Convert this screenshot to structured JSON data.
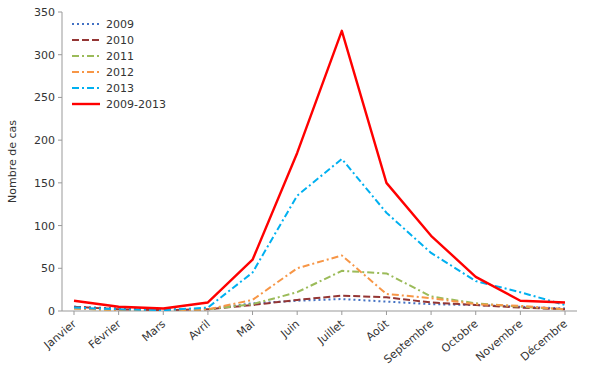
{
  "chart_data": {
    "type": "line",
    "categories": [
      "Janvier",
      "Février",
      "Mars",
      "Avril",
      "Mai",
      "Juin",
      "Juillet",
      "Août",
      "Septembre",
      "Octobre",
      "Novembre",
      "Décembre"
    ],
    "series": [
      {
        "name": "2009",
        "color": "#4472C4",
        "line_style": "dotted",
        "values": [
          5,
          3,
          2,
          2,
          9,
          12,
          14,
          11,
          8,
          7,
          5,
          3
        ]
      },
      {
        "name": "2010",
        "color": "#943634",
        "line_style": "dashed",
        "values": [
          5,
          2,
          1,
          2,
          7,
          13,
          18,
          16,
          10,
          7,
          4,
          2
        ]
      },
      {
        "name": "2011",
        "color": "#9BBB59",
        "line_style": "dashdot",
        "values": [
          3,
          1,
          1,
          2,
          8,
          22,
          47,
          44,
          17,
          9,
          5,
          2
        ]
      },
      {
        "name": "2012",
        "color": "#F79646",
        "line_style": "dashdot",
        "values": [
          3,
          1,
          1,
          2,
          13,
          50,
          65,
          20,
          15,
          8,
          6,
          2
        ]
      },
      {
        "name": "2013",
        "color": "#00B0F0",
        "line_style": "dashdot",
        "values": [
          4,
          2,
          1,
          4,
          45,
          135,
          178,
          115,
          68,
          35,
          22,
          7
        ]
      },
      {
        "name": "2009-2013",
        "color": "#FF0000",
        "line_style": "solid",
        "values": [
          12,
          5,
          3,
          10,
          60,
          185,
          328,
          150,
          88,
          40,
          12,
          10
        ]
      }
    ],
    "ylabel": "Nombre de cas",
    "ylim": [
      0,
      350
    ],
    "yticks": [
      0,
      50,
      100,
      150,
      200,
      250,
      300,
      350
    ],
    "legend": "upper left",
    "grid": false
  }
}
